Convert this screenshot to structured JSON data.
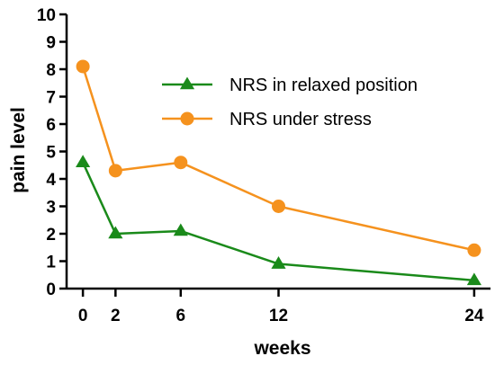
{
  "chart_data": {
    "type": "line",
    "xlabel": "weeks",
    "ylabel": "pain level",
    "x": [
      0,
      2,
      6,
      12,
      24
    ],
    "xlim": [
      -1,
      25
    ],
    "ylim": [
      0,
      10
    ],
    "x_ticks": [
      0,
      2,
      6,
      12,
      24
    ],
    "y_ticks": [
      0,
      1,
      2,
      3,
      4,
      5,
      6,
      7,
      8,
      9,
      10
    ],
    "grid": false,
    "legend_position": "top-right",
    "series": [
      {
        "name": "NRS in relaxed position",
        "values": [
          4.6,
          2.0,
          2.1,
          0.9,
          0.3
        ],
        "color": "#1a8a1a",
        "marker": "triangle"
      },
      {
        "name": "NRS under stress",
        "values": [
          8.1,
          4.3,
          4.6,
          3.0,
          1.4
        ],
        "color": "#f5921e",
        "marker": "circle"
      }
    ]
  }
}
